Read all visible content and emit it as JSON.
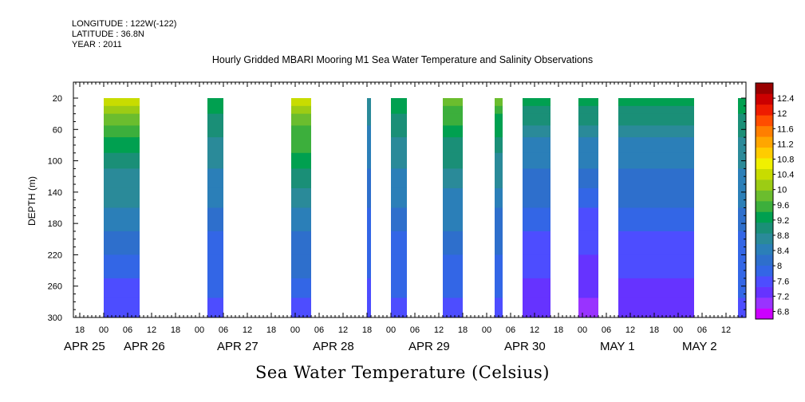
{
  "header": {
    "longitude": "LONGITUDE : 122W(-122)",
    "latitude": "LATITUDE : 36.8N",
    "year": "YEAR : 2011"
  },
  "title": "Hourly Gridded MBARI Mooring M1 Sea Water Temperature and Salinity Observations",
  "footer": "Sea Water Temperature (Celsius)",
  "colors": {
    "scale": [
      "#cc00ff",
      "#9933ff",
      "#6633ff",
      "#4d4dff",
      "#3366e6",
      "#2e6fcc",
      "#2b7fb8",
      "#2a8a99",
      "#1a8f77",
      "#00a050",
      "#3caf3c",
      "#6bbd2e",
      "#9ccc14",
      "#c8dc00",
      "#f0f000",
      "#ffcc00",
      "#ffa600",
      "#ff7f00",
      "#ff4d00",
      "#ee1c00",
      "#cc0000",
      "#990000"
    ]
  },
  "chart_data": {
    "type": "heatmap",
    "title": "Hourly Gridded MBARI Mooring M1 Sea Water Temperature and Salinity Observations",
    "xlabel": "",
    "ylabel": "DEPTH (m)",
    "colorbar_label": "Sea Water Temperature (Celsius)",
    "ylim": [
      300,
      10
    ],
    "y_ticks": [
      20,
      60,
      100,
      140,
      180,
      220,
      260,
      300
    ],
    "x_range_hours": [
      -9,
      108
    ],
    "x_hour_ticks": [
      {
        "h": -6,
        "label": "18"
      },
      {
        "h": 0,
        "label": "00"
      },
      {
        "h": 6,
        "label": "06"
      },
      {
        "h": 12,
        "label": "12"
      },
      {
        "h": 18,
        "label": "18"
      },
      {
        "h": 24,
        "label": "00"
      },
      {
        "h": 30,
        "label": "06"
      },
      {
        "h": 36,
        "label": "12"
      },
      {
        "h": 42,
        "label": "18"
      },
      {
        "h": 48,
        "label": "00"
      },
      {
        "h": 54,
        "label": "06"
      },
      {
        "h": 60,
        "label": "12"
      },
      {
        "h": 66,
        "label": "18"
      },
      {
        "h": 72,
        "label": "00"
      },
      {
        "h": 78,
        "label": "06"
      },
      {
        "h": 84,
        "label": "12"
      },
      {
        "h": 90,
        "label": "18"
      },
      {
        "h": 96,
        "label": "00"
      },
      {
        "h": 102,
        "label": "06"
      },
      {
        "h": 108,
        "label": "12"
      }
    ],
    "date_labels": [
      {
        "h": -3,
        "label": "APR 25"
      },
      {
        "h": 12,
        "label": "APR 26"
      },
      {
        "h": 33,
        "label": "APR 27"
      },
      {
        "h": 57,
        "label": "APR 28"
      },
      {
        "h": 81,
        "label": "APR 29"
      },
      {
        "h": 105,
        "label": "APR 30"
      },
      {
        "h": 129,
        "label": "MAY  1"
      },
      {
        "h": 150,
        "label": "MAY  2"
      }
    ],
    "colorbar": {
      "levels": [
        6.8,
        7.2,
        7.6,
        8,
        8.4,
        8.8,
        9.2,
        9.6,
        10,
        10.4,
        10.8,
        11.2,
        11.6,
        12,
        12.4
      ],
      "min": 6.6,
      "max": 12.8
    },
    "data_segments": [
      {
        "start_hour": 0,
        "end_hour": 9,
        "surface_temp": 10.8,
        "bottom_temp": 7.4
      },
      {
        "start_hour": 26,
        "end_hour": 30,
        "surface_temp": 9.6,
        "bottom_temp": 7.6
      },
      {
        "start_hour": 47,
        "end_hour": 52,
        "surface_temp": 10.8,
        "bottom_temp": 7.6
      },
      {
        "start_hour": 66,
        "end_hour": 67,
        "surface_temp": 9.0,
        "bottom_temp": 7.6
      },
      {
        "start_hour": 72,
        "end_hour": 76,
        "surface_temp": 9.6,
        "bottom_temp": 7.6
      },
      {
        "start_hour": 85,
        "end_hour": 90,
        "surface_temp": 10.2,
        "bottom_temp": 7.6
      },
      {
        "start_hour": 98,
        "end_hour": 100,
        "surface_temp": 10.0,
        "bottom_temp": 7.6
      },
      {
        "start_hour": 105,
        "end_hour": 112,
        "surface_temp": 9.6,
        "bottom_temp": 7.2
      },
      {
        "start_hour": 119,
        "end_hour": 124,
        "surface_temp": 9.6,
        "bottom_temp": 7.0
      },
      {
        "start_hour": 129,
        "end_hour": 148,
        "surface_temp": 9.6,
        "bottom_temp": 7.2
      },
      {
        "start_hour": 159,
        "end_hour": 161,
        "surface_temp": 9.6,
        "bottom_temp": 7.6
      }
    ]
  }
}
